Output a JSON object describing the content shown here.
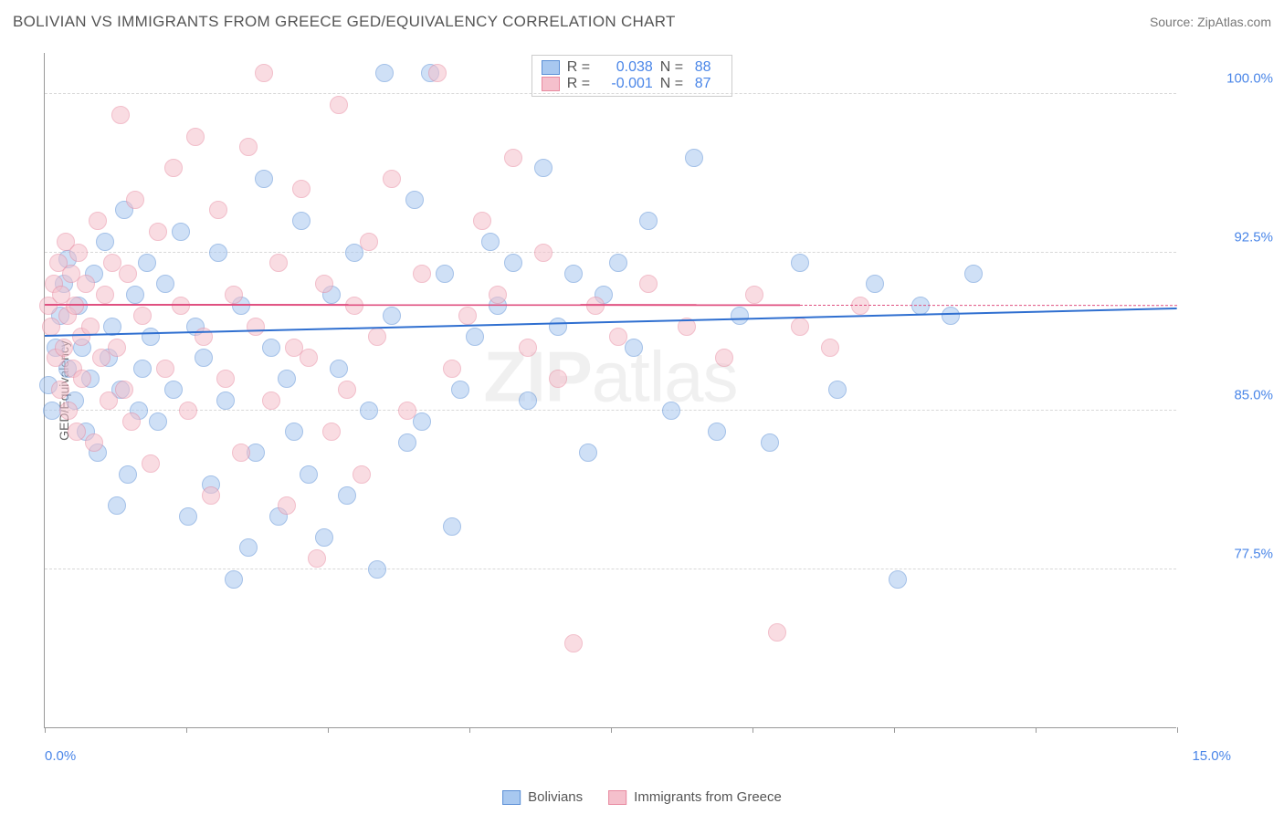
{
  "header": {
    "title": "BOLIVIAN VS IMMIGRANTS FROM GREECE GED/EQUIVALENCY CORRELATION CHART",
    "source": "Source: ZipAtlas.com"
  },
  "chart": {
    "type": "scatter",
    "y_axis_title": "GED/Equivalency",
    "watermark": {
      "bold": "ZIP",
      "light": "atlas"
    },
    "background_color": "#ffffff",
    "grid_color": "#d8d8d8",
    "axis_color": "#999999",
    "label_color_y": "#4a86e8",
    "label_color_x": "#4a86e8",
    "title_color": "#555555",
    "title_fontsize": 17,
    "label_fontsize": 15,
    "xlim": [
      0.0,
      15.0
    ],
    "ylim": [
      70.0,
      102.0
    ],
    "y_ticks": [
      77.5,
      85.0,
      92.5,
      100.0
    ],
    "y_tick_labels": [
      "77.5%",
      "85.0%",
      "92.5%",
      "100.0%"
    ],
    "x_ticks": [
      0.0,
      1.875,
      3.75,
      5.625,
      7.5,
      9.375,
      11.25,
      13.125,
      15.0
    ],
    "x_axis_labels": {
      "left": "0.0%",
      "right": "15.0%"
    },
    "point_radius": 10,
    "point_opacity": 0.55,
    "series": [
      {
        "name": "Bolivians",
        "fill": "#a8c8f0",
        "stroke": "#5b8fd6",
        "r": 0.038,
        "n": 88,
        "trend": {
          "x1": 0.0,
          "y1": 88.5,
          "x2": 15.0,
          "y2": 89.8,
          "color": "#2f6fd0",
          "width": 2,
          "dash": false
        },
        "points": [
          [
            0.05,
            86.2
          ],
          [
            0.1,
            85.0
          ],
          [
            0.15,
            88.0
          ],
          [
            0.2,
            89.5
          ],
          [
            0.25,
            91.0
          ],
          [
            0.3,
            92.2
          ],
          [
            0.3,
            87.0
          ],
          [
            0.4,
            85.5
          ],
          [
            0.45,
            90.0
          ],
          [
            0.5,
            88.0
          ],
          [
            0.55,
            84.0
          ],
          [
            0.6,
            86.5
          ],
          [
            0.65,
            91.5
          ],
          [
            0.7,
            83.0
          ],
          [
            0.8,
            93.0
          ],
          [
            0.85,
            87.5
          ],
          [
            0.9,
            89.0
          ],
          [
            0.95,
            80.5
          ],
          [
            1.0,
            86.0
          ],
          [
            1.05,
            94.5
          ],
          [
            1.1,
            82.0
          ],
          [
            1.2,
            90.5
          ],
          [
            1.25,
            85.0
          ],
          [
            1.3,
            87.0
          ],
          [
            1.35,
            92.0
          ],
          [
            1.4,
            88.5
          ],
          [
            1.5,
            84.5
          ],
          [
            1.6,
            91.0
          ],
          [
            1.7,
            86.0
          ],
          [
            1.8,
            93.5
          ],
          [
            1.9,
            80.0
          ],
          [
            2.0,
            89.0
          ],
          [
            2.1,
            87.5
          ],
          [
            2.2,
            81.5
          ],
          [
            2.3,
            92.5
          ],
          [
            2.4,
            85.5
          ],
          [
            2.5,
            77.0
          ],
          [
            2.6,
            90.0
          ],
          [
            2.7,
            78.5
          ],
          [
            2.8,
            83.0
          ],
          [
            2.9,
            96.0
          ],
          [
            3.0,
            88.0
          ],
          [
            3.1,
            80.0
          ],
          [
            3.2,
            86.5
          ],
          [
            3.3,
            84.0
          ],
          [
            3.4,
            94.0
          ],
          [
            3.5,
            82.0
          ],
          [
            3.7,
            79.0
          ],
          [
            3.8,
            90.5
          ],
          [
            3.9,
            87.0
          ],
          [
            4.0,
            81.0
          ],
          [
            4.1,
            92.5
          ],
          [
            4.3,
            85.0
          ],
          [
            4.4,
            77.5
          ],
          [
            4.5,
            101.0
          ],
          [
            4.6,
            89.5
          ],
          [
            4.8,
            83.5
          ],
          [
            4.9,
            95.0
          ],
          [
            5.0,
            84.5
          ],
          [
            5.1,
            101.0
          ],
          [
            5.3,
            91.5
          ],
          [
            5.4,
            79.5
          ],
          [
            5.5,
            86.0
          ],
          [
            5.7,
            88.5
          ],
          [
            5.9,
            93.0
          ],
          [
            6.0,
            90.0
          ],
          [
            6.2,
            92.0
          ],
          [
            6.4,
            85.5
          ],
          [
            6.6,
            96.5
          ],
          [
            6.8,
            89.0
          ],
          [
            7.0,
            91.5
          ],
          [
            7.2,
            83.0
          ],
          [
            7.4,
            90.5
          ],
          [
            7.6,
            92.0
          ],
          [
            7.8,
            88.0
          ],
          [
            8.0,
            94.0
          ],
          [
            8.3,
            85.0
          ],
          [
            8.6,
            97.0
          ],
          [
            8.9,
            84.0
          ],
          [
            9.2,
            89.5
          ],
          [
            9.6,
            83.5
          ],
          [
            10.0,
            92.0
          ],
          [
            10.5,
            86.0
          ],
          [
            11.0,
            91.0
          ],
          [
            11.3,
            77.0
          ],
          [
            11.6,
            90.0
          ],
          [
            12.0,
            89.5
          ],
          [
            12.3,
            91.5
          ]
        ]
      },
      {
        "name": "Immigrants from Greece",
        "fill": "#f5c0cc",
        "stroke": "#e88aa0",
        "r": -0.001,
        "n": 87,
        "trend_solid": {
          "x1": 0.0,
          "y1": 90.0,
          "x2": 10.0,
          "y2": 89.99,
          "color": "#e05080",
          "width": 2
        },
        "trend_dashed": {
          "x1": 10.0,
          "y1": 89.99,
          "x2": 15.0,
          "y2": 89.98,
          "color": "#e05080",
          "width": 1
        },
        "points": [
          [
            0.05,
            90.0
          ],
          [
            0.08,
            89.0
          ],
          [
            0.12,
            91.0
          ],
          [
            0.15,
            87.5
          ],
          [
            0.18,
            92.0
          ],
          [
            0.2,
            86.0
          ],
          [
            0.22,
            90.5
          ],
          [
            0.25,
            88.0
          ],
          [
            0.28,
            93.0
          ],
          [
            0.3,
            89.5
          ],
          [
            0.32,
            85.0
          ],
          [
            0.35,
            91.5
          ],
          [
            0.38,
            87.0
          ],
          [
            0.4,
            90.0
          ],
          [
            0.42,
            84.0
          ],
          [
            0.45,
            92.5
          ],
          [
            0.48,
            88.5
          ],
          [
            0.5,
            86.5
          ],
          [
            0.55,
            91.0
          ],
          [
            0.6,
            89.0
          ],
          [
            0.65,
            83.5
          ],
          [
            0.7,
            94.0
          ],
          [
            0.75,
            87.5
          ],
          [
            0.8,
            90.5
          ],
          [
            0.85,
            85.5
          ],
          [
            0.9,
            92.0
          ],
          [
            0.95,
            88.0
          ],
          [
            1.0,
            99.0
          ],
          [
            1.05,
            86.0
          ],
          [
            1.1,
            91.5
          ],
          [
            1.15,
            84.5
          ],
          [
            1.2,
            95.0
          ],
          [
            1.3,
            89.5
          ],
          [
            1.4,
            82.5
          ],
          [
            1.5,
            93.5
          ],
          [
            1.6,
            87.0
          ],
          [
            1.7,
            96.5
          ],
          [
            1.8,
            90.0
          ],
          [
            1.9,
            85.0
          ],
          [
            2.0,
            98.0
          ],
          [
            2.1,
            88.5
          ],
          [
            2.2,
            81.0
          ],
          [
            2.3,
            94.5
          ],
          [
            2.4,
            86.5
          ],
          [
            2.5,
            90.5
          ],
          [
            2.6,
            83.0
          ],
          [
            2.7,
            97.5
          ],
          [
            2.8,
            89.0
          ],
          [
            2.9,
            101.0
          ],
          [
            3.0,
            85.5
          ],
          [
            3.1,
            92.0
          ],
          [
            3.2,
            80.5
          ],
          [
            3.3,
            88.0
          ],
          [
            3.4,
            95.5
          ],
          [
            3.5,
            87.5
          ],
          [
            3.6,
            78.0
          ],
          [
            3.7,
            91.0
          ],
          [
            3.8,
            84.0
          ],
          [
            3.9,
            99.5
          ],
          [
            4.0,
            86.0
          ],
          [
            4.1,
            90.0
          ],
          [
            4.2,
            82.0
          ],
          [
            4.3,
            93.0
          ],
          [
            4.4,
            88.5
          ],
          [
            4.6,
            96.0
          ],
          [
            4.8,
            85.0
          ],
          [
            5.0,
            91.5
          ],
          [
            5.2,
            101.0
          ],
          [
            5.4,
            87.0
          ],
          [
            5.6,
            89.5
          ],
          [
            5.8,
            94.0
          ],
          [
            6.0,
            90.5
          ],
          [
            6.2,
            97.0
          ],
          [
            6.4,
            88.0
          ],
          [
            6.6,
            92.5
          ],
          [
            6.8,
            86.5
          ],
          [
            7.0,
            74.0
          ],
          [
            7.3,
            90.0
          ],
          [
            7.6,
            88.5
          ],
          [
            8.0,
            91.0
          ],
          [
            8.5,
            89.0
          ],
          [
            9.0,
            87.5
          ],
          [
            9.4,
            90.5
          ],
          [
            9.7,
            74.5
          ],
          [
            10.0,
            89.0
          ],
          [
            10.4,
            88.0
          ],
          [
            10.8,
            90.0
          ]
        ]
      }
    ],
    "legend": {
      "items": [
        "Bolivians",
        "Immigrants from Greece"
      ]
    }
  }
}
